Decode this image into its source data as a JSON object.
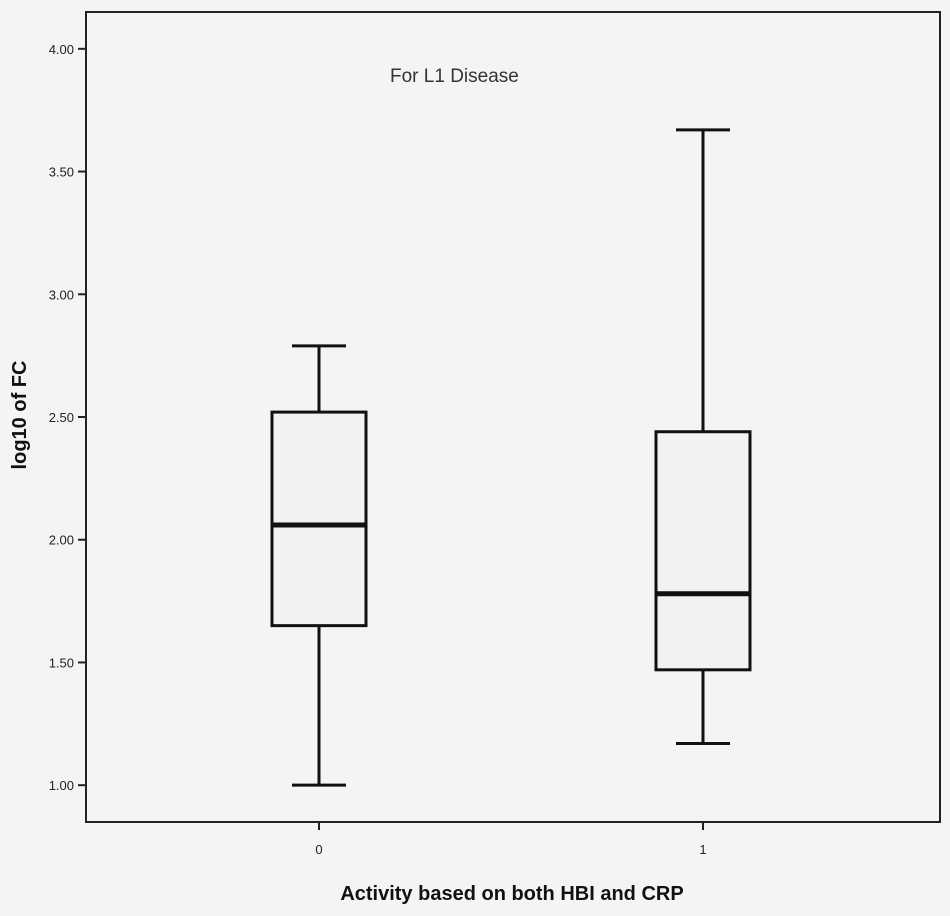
{
  "chart_data": {
    "type": "box",
    "annotation": "For L1 Disease",
    "xlabel": "Activity based on both HBI and CRP",
    "ylabel": "log10 of FC",
    "ylim": [
      0.85,
      4.15
    ],
    "yticks": [
      1.0,
      1.5,
      2.0,
      2.5,
      3.0,
      3.5,
      4.0
    ],
    "ytick_labels": [
      "1.00",
      "1.50",
      "2.00",
      "2.50",
      "3.00",
      "3.50",
      "4.00"
    ],
    "categories": [
      "0",
      "1"
    ],
    "boxes": [
      {
        "category": "0",
        "whisker_low": 1.0,
        "q1": 1.65,
        "median": 2.06,
        "q3": 2.52,
        "whisker_high": 2.79
      },
      {
        "category": "1",
        "whisker_low": 1.17,
        "q1": 1.47,
        "median": 1.78,
        "q3": 2.44,
        "whisker_high": 3.67
      }
    ],
    "grid": false,
    "legend": "none",
    "colors": {
      "box_fill": "#f2f2f0",
      "stroke": "#111111",
      "background": "#f4f4f2"
    }
  }
}
